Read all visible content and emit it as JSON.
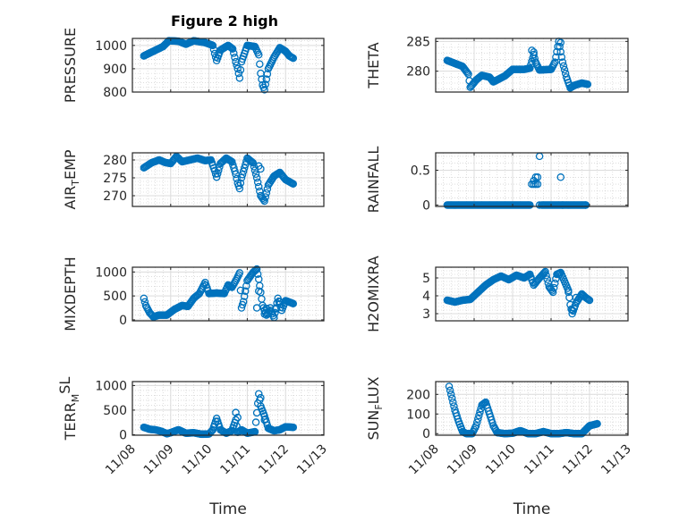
{
  "figure_title": "Figure 2 high",
  "marker_color": "#0072BD",
  "chart_data": [
    {
      "type": "scatter",
      "id": "pressure",
      "ylabel_main": "PRESSURE",
      "ylabel_sub": "",
      "ylabel_rest": "",
      "xlabel": "",
      "show_xticks": false,
      "xlim": [
        0,
        5
      ],
      "ylim": [
        800,
        1030
      ],
      "yticks": [
        800,
        900,
        1000
      ],
      "xticks": [
        0,
        1,
        2,
        3,
        4,
        5
      ],
      "xticklabels": [
        "11/08",
        "11/09",
        "11/10",
        "11/11",
        "11/12",
        "11/13"
      ],
      "keyframes": [
        [
          0.3,
          955
        ],
        [
          0.55,
          975
        ],
        [
          0.8,
          995
        ],
        [
          0.95,
          1020
        ],
        [
          1.2,
          1018
        ],
        [
          1.4,
          1005
        ],
        [
          1.6,
          1020
        ],
        [
          1.9,
          1012
        ],
        [
          2.1,
          1000
        ],
        [
          2.15,
          965
        ],
        [
          2.2,
          935
        ],
        [
          2.3,
          980
        ],
        [
          2.5,
          1000
        ],
        [
          2.62,
          985
        ],
        [
          2.7,
          930
        ],
        [
          2.75,
          900
        ],
        [
          2.8,
          860
        ],
        [
          2.85,
          930
        ],
        [
          3.0,
          1000
        ],
        [
          3.2,
          995
        ],
        [
          3.3,
          960
        ],
        [
          3.35,
          880
        ],
        [
          3.4,
          830
        ],
        [
          3.45,
          810
        ],
        [
          3.55,
          900
        ],
        [
          3.7,
          950
        ],
        [
          3.85,
          990
        ],
        [
          4.0,
          975
        ],
        [
          4.1,
          955
        ],
        [
          4.2,
          945
        ]
      ],
      "extra_points": []
    },
    {
      "type": "scatter",
      "id": "theta",
      "ylabel_main": "THETA",
      "ylabel_sub": "",
      "ylabel_rest": "",
      "xlabel": "",
      "show_xticks": false,
      "xlim": [
        0,
        5
      ],
      "ylim": [
        276.5,
        285.5
      ],
      "yticks": [
        280,
        285
      ],
      "xticks": [
        0,
        1,
        2,
        3,
        4,
        5
      ],
      "xticklabels": [
        "11/08",
        "11/09",
        "11/10",
        "11/11",
        "11/12",
        "11/13"
      ],
      "keyframes": [
        [
          0.3,
          281.8
        ],
        [
          0.5,
          281.3
        ],
        [
          0.7,
          280.8
        ],
        [
          0.85,
          279.5
        ],
        [
          0.9,
          277.3
        ],
        [
          1.05,
          278.5
        ],
        [
          1.2,
          279.3
        ],
        [
          1.4,
          279.0
        ],
        [
          1.5,
          278.2
        ],
        [
          1.8,
          279.2
        ],
        [
          2.0,
          280.3
        ],
        [
          2.3,
          280.3
        ],
        [
          2.45,
          280.5
        ],
        [
          2.55,
          282.8
        ],
        [
          2.6,
          281.5
        ],
        [
          2.7,
          280.2
        ],
        [
          3.0,
          280.3
        ],
        [
          3.1,
          281.5
        ],
        [
          3.2,
          285.0
        ],
        [
          3.3,
          281.5
        ],
        [
          3.4,
          279.0
        ],
        [
          3.5,
          277.2
        ],
        [
          3.6,
          277.6
        ],
        [
          3.8,
          278.0
        ],
        [
          3.95,
          277.8
        ]
      ],
      "extra_points": [
        [
          2.5,
          283.5
        ],
        [
          2.55,
          283.2
        ],
        [
          3.25,
          284.8
        ]
      ]
    },
    {
      "type": "scatter",
      "id": "air_temp",
      "ylabel_main": "AIR",
      "ylabel_sub": "T",
      "ylabel_rest": "EMP",
      "xlabel": "",
      "show_xticks": false,
      "xlim": [
        0,
        5
      ],
      "ylim": [
        267,
        282
      ],
      "yticks": [
        270,
        275,
        280
      ],
      "xticks": [
        0,
        1,
        2,
        3,
        4,
        5
      ],
      "xticklabels": [
        "11/08",
        "11/09",
        "11/10",
        "11/11",
        "11/12",
        "11/13"
      ],
      "keyframes": [
        [
          0.3,
          277.8
        ],
        [
          0.5,
          279.2
        ],
        [
          0.7,
          280.0
        ],
        [
          0.85,
          279.3
        ],
        [
          1.0,
          279.0
        ],
        [
          1.15,
          281.0
        ],
        [
          1.3,
          279.5
        ],
        [
          1.5,
          280.0
        ],
        [
          1.7,
          280.5
        ],
        [
          1.9,
          279.8
        ],
        [
          2.05,
          280.0
        ],
        [
          2.15,
          277.0
        ],
        [
          2.2,
          275.2
        ],
        [
          2.3,
          279.0
        ],
        [
          2.45,
          280.5
        ],
        [
          2.6,
          279.5
        ],
        [
          2.7,
          276.0
        ],
        [
          2.75,
          273.5
        ],
        [
          2.8,
          272.0
        ],
        [
          2.85,
          275.0
        ],
        [
          3.0,
          280.5
        ],
        [
          3.15,
          279.2
        ],
        [
          3.25,
          275.0
        ],
        [
          3.3,
          272.5
        ],
        [
          3.35,
          270.0
        ],
        [
          3.45,
          268.5
        ],
        [
          3.55,
          273.0
        ],
        [
          3.7,
          275.5
        ],
        [
          3.85,
          276.5
        ],
        [
          4.0,
          274.5
        ],
        [
          4.2,
          273.3
        ]
      ],
      "extra_points": [
        [
          3.3,
          278.3
        ],
        [
          3.35,
          277.5
        ]
      ]
    },
    {
      "type": "scatter",
      "id": "rainfall",
      "ylabel_main": "RAINFALL",
      "ylabel_sub": "",
      "ylabel_rest": "",
      "xlabel": "",
      "show_xticks": false,
      "xlim": [
        0,
        5
      ],
      "ylim": [
        -0.02,
        0.75
      ],
      "yticks": [
        0,
        0.5
      ],
      "xticks": [
        0,
        1,
        2,
        3,
        4,
        5
      ],
      "xticklabels": [
        "11/08",
        "11/09",
        "11/10",
        "11/11",
        "11/12",
        "11/13"
      ],
      "keyframes": [
        [
          0.3,
          0
        ],
        [
          2.45,
          0
        ]
      ],
      "extra_points": [
        [
          2.5,
          0.3
        ],
        [
          2.55,
          0.35
        ],
        [
          2.6,
          0.4
        ],
        [
          2.65,
          0.4
        ],
        [
          2.7,
          0.7
        ],
        [
          2.65,
          0.3
        ],
        [
          2.55,
          0.3
        ],
        [
          2.6,
          0.3
        ],
        [
          2.7,
          0
        ],
        [
          3.3,
          0
        ],
        [
          3.9,
          0
        ],
        [
          3.25,
          0.4
        ]
      ],
      "second_run": [
        [
          2.75,
          0
        ],
        [
          3.9,
          0
        ]
      ]
    },
    {
      "type": "scatter",
      "id": "mixdepth",
      "ylabel_main": "MIXDEPTH",
      "ylabel_sub": "",
      "ylabel_rest": "",
      "xlabel": "",
      "show_xticks": false,
      "xlim": [
        0,
        5
      ],
      "ylim": [
        -20,
        1100
      ],
      "yticks": [
        0,
        500,
        1000
      ],
      "xticks": [
        0,
        1,
        2,
        3,
        4,
        5
      ],
      "xticklabels": [
        "11/08",
        "11/09",
        "11/10",
        "11/11",
        "11/12",
        "11/13"
      ],
      "keyframes": [
        [
          0.3,
          450
        ],
        [
          0.35,
          300
        ],
        [
          0.45,
          150
        ],
        [
          0.55,
          60
        ],
        [
          0.7,
          100
        ],
        [
          0.9,
          100
        ],
        [
          1.1,
          220
        ],
        [
          1.3,
          300
        ],
        [
          1.45,
          280
        ],
        [
          1.6,
          450
        ],
        [
          1.75,
          550
        ],
        [
          1.9,
          780
        ],
        [
          2.0,
          550
        ],
        [
          2.2,
          560
        ],
        [
          2.4,
          550
        ],
        [
          2.5,
          730
        ],
        [
          2.6,
          680
        ],
        [
          2.7,
          820
        ],
        [
          2.8,
          980
        ],
        [
          2.85,
          250
        ],
        [
          2.9,
          380
        ],
        [
          3.0,
          820
        ],
        [
          3.15,
          990
        ],
        [
          3.25,
          1060
        ],
        [
          3.3,
          850
        ],
        [
          3.4,
          300
        ],
        [
          3.5,
          100
        ],
        [
          3.6,
          200
        ],
        [
          3.7,
          50
        ],
        [
          3.8,
          450
        ],
        [
          3.9,
          200
        ],
        [
          4.0,
          400
        ],
        [
          4.2,
          340
        ]
      ],
      "extra_points": [
        [
          3.45,
          120
        ],
        [
          3.5,
          240
        ],
        [
          3.6,
          250
        ],
        [
          3.75,
          230
        ],
        [
          3.85,
          380
        ],
        [
          3.3,
          600
        ],
        [
          3.25,
          250
        ]
      ]
    },
    {
      "type": "scatter",
      "id": "h2omixra",
      "ylabel_main": "H2OMIXRA",
      "ylabel_sub": "",
      "ylabel_rest": "",
      "xlabel": "",
      "show_xticks": false,
      "xlim": [
        0,
        5
      ],
      "ylim": [
        2.6,
        5.6
      ],
      "yticks": [
        3,
        4,
        5
      ],
      "xticks": [
        0,
        1,
        2,
        3,
        4,
        5
      ],
      "xticklabels": [
        "11/08",
        "11/09",
        "11/10",
        "11/11",
        "11/12",
        "11/13"
      ],
      "keyframes": [
        [
          0.3,
          3.75
        ],
        [
          0.5,
          3.65
        ],
        [
          0.7,
          3.75
        ],
        [
          0.9,
          3.8
        ],
        [
          1.1,
          4.2
        ],
        [
          1.3,
          4.6
        ],
        [
          1.5,
          4.9
        ],
        [
          1.7,
          5.1
        ],
        [
          1.9,
          4.9
        ],
        [
          2.1,
          5.15
        ],
        [
          2.3,
          5.0
        ],
        [
          2.45,
          5.2
        ],
        [
          2.55,
          4.6
        ],
        [
          2.7,
          5.0
        ],
        [
          2.85,
          5.35
        ],
        [
          2.95,
          4.5
        ],
        [
          3.05,
          4.2
        ],
        [
          3.15,
          5.2
        ],
        [
          3.25,
          5.3
        ],
        [
          3.35,
          4.8
        ],
        [
          3.45,
          4.3
        ],
        [
          3.5,
          3.5
        ],
        [
          3.55,
          3.0
        ],
        [
          3.65,
          3.6
        ],
        [
          3.8,
          4.1
        ],
        [
          3.9,
          3.9
        ],
        [
          4.0,
          3.75
        ]
      ],
      "extra_points": [
        [
          3.45,
          4.2
        ],
        [
          3.55,
          3.2
        ],
        [
          3.65,
          3.9
        ]
      ]
    },
    {
      "type": "scatter",
      "id": "terr_msl",
      "ylabel_main": "TERR",
      "ylabel_sub": "M",
      "ylabel_rest": "SL",
      "ylabel_sup": true,
      "xlabel": "Time",
      "show_xticks": true,
      "xlim": [
        0,
        5
      ],
      "ylim": [
        -10,
        1080
      ],
      "yticks": [
        0,
        500,
        1000
      ],
      "xticks": [
        0,
        1,
        2,
        3,
        4,
        5
      ],
      "xticklabels": [
        "11/08",
        "11/09",
        "11/10",
        "11/11",
        "11/12",
        "11/13"
      ],
      "keyframes": [
        [
          0.3,
          150
        ],
        [
          0.45,
          110
        ],
        [
          0.6,
          100
        ],
        [
          0.75,
          70
        ],
        [
          0.9,
          20
        ],
        [
          1.0,
          40
        ],
        [
          1.2,
          100
        ],
        [
          1.4,
          30
        ],
        [
          1.6,
          40
        ],
        [
          1.8,
          10
        ],
        [
          2.0,
          15
        ],
        [
          2.1,
          100
        ],
        [
          2.2,
          330
        ],
        [
          2.3,
          100
        ],
        [
          2.45,
          30
        ],
        [
          2.6,
          80
        ],
        [
          2.7,
          300
        ],
        [
          2.75,
          50
        ],
        [
          2.85,
          100
        ],
        [
          3.0,
          30
        ],
        [
          3.2,
          60
        ],
        [
          3.3,
          830
        ],
        [
          3.35,
          580
        ],
        [
          3.45,
          380
        ],
        [
          3.55,
          130
        ],
        [
          3.7,
          80
        ],
        [
          3.85,
          100
        ],
        [
          4.0,
          160
        ],
        [
          4.2,
          150
        ]
      ],
      "extra_points": [
        [
          2.7,
          450
        ],
        [
          2.75,
          350
        ],
        [
          3.35,
          750
        ],
        [
          3.45,
          300
        ]
      ]
    },
    {
      "type": "scatter",
      "id": "sun_flux",
      "ylabel_main": "SUN",
      "ylabel_sub": "F",
      "ylabel_rest": "LUX",
      "xlabel": "Time",
      "show_xticks": true,
      "xlim": [
        0,
        5
      ],
      "ylim": [
        -8,
        265
      ],
      "yticks": [
        0,
        100,
        200
      ],
      "xticks": [
        0,
        1,
        2,
        3,
        4,
        5
      ],
      "xticklabels": [
        "11/08",
        "11/09",
        "11/10",
        "11/11",
        "11/12",
        "11/13"
      ],
      "keyframes": [
        [
          0.35,
          240
        ],
        [
          0.4,
          200
        ],
        [
          0.5,
          120
        ],
        [
          0.6,
          60
        ],
        [
          0.7,
          10
        ],
        [
          0.8,
          0
        ],
        [
          0.95,
          0
        ],
        [
          1.05,
          40
        ],
        [
          1.2,
          145
        ],
        [
          1.3,
          160
        ],
        [
          1.4,
          100
        ],
        [
          1.5,
          40
        ],
        [
          1.6,
          5
        ],
        [
          1.8,
          0
        ],
        [
          2.0,
          2
        ],
        [
          2.2,
          15
        ],
        [
          2.4,
          0
        ],
        [
          2.6,
          0
        ],
        [
          2.8,
          10
        ],
        [
          3.0,
          0
        ],
        [
          3.2,
          0
        ],
        [
          3.4,
          5
        ],
        [
          3.6,
          0
        ],
        [
          3.8,
          0
        ],
        [
          3.9,
          20
        ],
        [
          4.0,
          40
        ],
        [
          4.2,
          50
        ]
      ],
      "extra_points": []
    }
  ]
}
